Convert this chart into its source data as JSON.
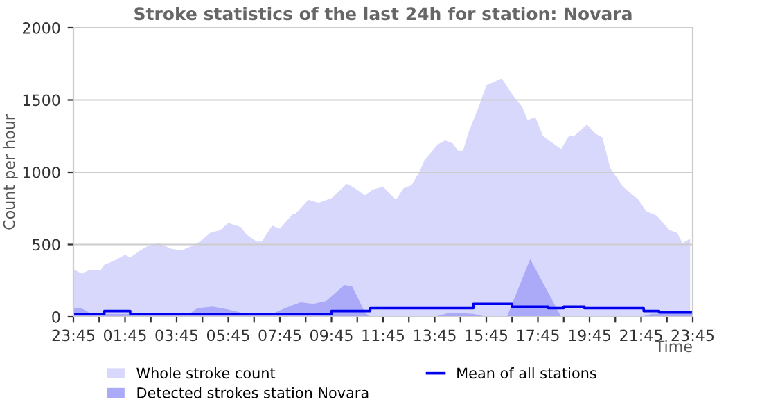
{
  "chart_data": {
    "type": "area",
    "title": "Stroke statistics of the last 24h for station: Novara",
    "xlabel": "Time",
    "ylabel": "Count per hour",
    "xlim": [
      "2000-01-01T23:45",
      "2000-01-02T23:45"
    ],
    "ylim": [
      0,
      2000
    ],
    "yticks": [
      0,
      500,
      1000,
      1500,
      2000
    ],
    "xticks": [
      {
        "value": "2000-01-01T23:45",
        "label": "23:45"
      },
      {
        "value": "2000-01-02T00:45",
        "label": null
      },
      {
        "value": "2000-01-02T01:45",
        "label": "01:45"
      },
      {
        "value": "2000-01-02T02:45",
        "label": null
      },
      {
        "value": "2000-01-02T03:45",
        "label": "03:45"
      },
      {
        "value": "2000-01-02T04:45",
        "label": null
      },
      {
        "value": "2000-01-02T05:45",
        "label": "05:45"
      },
      {
        "value": "2000-01-02T06:45",
        "label": null
      },
      {
        "value": "2000-01-02T07:45",
        "label": "07:45"
      },
      {
        "value": "2000-01-02T08:45",
        "label": null
      },
      {
        "value": "2000-01-02T09:45",
        "label": "09:45"
      },
      {
        "value": "2000-01-02T10:45",
        "label": null
      },
      {
        "value": "2000-01-02T11:45",
        "label": "11:45"
      },
      {
        "value": "2000-01-02T12:45",
        "label": null
      },
      {
        "value": "2000-01-02T13:45",
        "label": "13:45"
      },
      {
        "value": "2000-01-02T14:45",
        "label": null
      },
      {
        "value": "2000-01-02T15:45",
        "label": "15:45"
      },
      {
        "value": "2000-01-02T16:45",
        "label": null
      },
      {
        "value": "2000-01-02T17:45",
        "label": "17:45"
      },
      {
        "value": "2000-01-02T18:45",
        "label": null
      },
      {
        "value": "2000-01-02T19:45",
        "label": "19:45"
      },
      {
        "value": "2000-01-02T20:45",
        "label": null
      },
      {
        "value": "2000-01-02T21:45",
        "label": "21:45"
      },
      {
        "value": "2000-01-02T22:45",
        "label": null
      },
      {
        "value": "2000-01-02T23:45",
        "label": "23:45"
      }
    ],
    "grid": "y",
    "legend": "bottom",
    "series": [
      {
        "name": "Whole stroke count",
        "color": "#d8d8fc",
        "x": [
          "2000-01-01T23:45",
          "2000-01-02T00:03",
          "2000-01-02T00:21",
          "2000-01-02T00:48",
          "2000-01-02T00:57",
          "2000-01-02T01:21",
          "2000-01-02T01:45",
          "2000-01-02T01:57",
          "2000-01-02T02:21",
          "2000-01-02T02:39",
          "2000-01-02T03:03",
          "2000-01-02T03:33",
          "2000-01-02T03:57",
          "2000-01-02T04:21",
          "2000-01-02T04:39",
          "2000-01-02T05:03",
          "2000-01-02T05:27",
          "2000-01-02T05:45",
          "2000-01-02T06:15",
          "2000-01-02T06:27",
          "2000-01-02T06:51",
          "2000-01-02T07:03",
          "2000-01-02T07:27",
          "2000-01-02T07:45",
          "2000-01-02T08:15",
          "2000-01-02T08:21",
          "2000-01-02T08:51",
          "2000-01-02T09:15",
          "2000-01-02T09:45",
          "2000-01-02T10:21",
          "2000-01-02T10:39",
          "2000-01-02T11:03",
          "2000-01-02T11:21",
          "2000-01-02T11:45",
          "2000-01-02T12:15",
          "2000-01-02T12:33",
          "2000-01-02T12:51",
          "2000-01-02T13:09",
          "2000-01-02T13:21",
          "2000-01-02T13:51",
          "2000-01-02T14:09",
          "2000-01-02T14:27",
          "2000-01-02T14:39",
          "2000-01-02T14:51",
          "2000-01-02T15:03",
          "2000-01-02T15:27",
          "2000-01-02T15:45",
          "2000-01-02T16:21",
          "2000-01-02T16:45",
          "2000-01-02T17:09",
          "2000-01-02T17:21",
          "2000-01-02T17:39",
          "2000-01-02T17:57",
          "2000-01-02T18:15",
          "2000-01-02T18:39",
          "2000-01-02T18:57",
          "2000-01-02T19:09",
          "2000-01-02T19:39",
          "2000-01-02T19:57",
          "2000-01-02T20:15",
          "2000-01-02T20:33",
          "2000-01-02T21:03",
          "2000-01-02T21:39",
          "2000-01-02T21:57",
          "2000-01-02T22:21",
          "2000-01-02T22:51",
          "2000-01-02T23:09",
          "2000-01-02T23:21",
          "2000-01-02T23:39"
        ],
        "values": [
          330,
          300,
          320,
          320,
          360,
          390,
          430,
          410,
          460,
          490,
          510,
          470,
          460,
          490,
          520,
          580,
          600,
          650,
          620,
          570,
          520,
          520,
          630,
          610,
          710,
          710,
          810,
          790,
          820,
          920,
          890,
          840,
          880,
          900,
          810,
          890,
          910,
          1000,
          1080,
          1190,
          1220,
          1200,
          1150,
          1150,
          1270,
          1450,
          1600,
          1650,
          1540,
          1450,
          1360,
          1380,
          1250,
          1210,
          1160,
          1250,
          1250,
          1330,
          1270,
          1240,
          1030,
          900,
          810,
          730,
          700,
          600,
          580,
          510,
          540
        ]
      },
      {
        "name": "Detected strokes station Novara",
        "color": "#aaaaf8",
        "x": [
          "2000-01-01T23:45",
          "2000-01-02T00:03",
          "2000-01-02T00:21",
          "2000-01-02T00:45",
          "2000-01-02T01:45",
          "2000-01-02T02:45",
          "2000-01-02T03:45",
          "2000-01-02T04:15",
          "2000-01-02T04:33",
          "2000-01-02T05:09",
          "2000-01-02T05:45",
          "2000-01-02T06:27",
          "2000-01-02T07:27",
          "2000-01-02T07:57",
          "2000-01-02T08:33",
          "2000-01-02T09:03",
          "2000-01-02T09:33",
          "2000-01-02T10:15",
          "2000-01-02T10:33",
          "2000-01-02T11:03",
          "2000-01-02T11:15",
          "2000-01-02T13:45",
          "2000-01-02T14:21",
          "2000-01-02T15:15",
          "2000-01-02T15:45",
          "2000-01-02T16:33",
          "2000-01-02T17:27",
          "2000-01-02T18:21",
          "2000-01-02T18:39",
          "2000-01-02T21:45",
          "2000-01-02T22:09",
          "2000-01-02T23:33",
          "2000-01-02T23:45"
        ],
        "values": [
          60,
          60,
          30,
          20,
          20,
          20,
          20,
          20,
          60,
          70,
          50,
          20,
          20,
          60,
          100,
          90,
          110,
          220,
          210,
          30,
          0,
          0,
          30,
          20,
          0,
          0,
          400,
          100,
          0,
          0,
          20,
          30,
          30
        ]
      },
      {
        "name": "Mean of all stations",
        "type": "step",
        "color": "#0000ee",
        "x": [
          "2000-01-01T23:45",
          "2000-01-02T00:57",
          "2000-01-02T01:57",
          "2000-01-02T03:15",
          "2000-01-02T09:45",
          "2000-01-02T11:15",
          "2000-01-02T13:09",
          "2000-01-02T15:15",
          "2000-01-02T16:45",
          "2000-01-02T18:09",
          "2000-01-02T18:45",
          "2000-01-02T19:33",
          "2000-01-02T20:15",
          "2000-01-02T21:51",
          "2000-01-02T22:27",
          "2000-01-02T23:45"
        ],
        "values": [
          20,
          40,
          20,
          20,
          40,
          60,
          60,
          90,
          70,
          60,
          70,
          60,
          60,
          40,
          30,
          30
        ]
      }
    ]
  }
}
